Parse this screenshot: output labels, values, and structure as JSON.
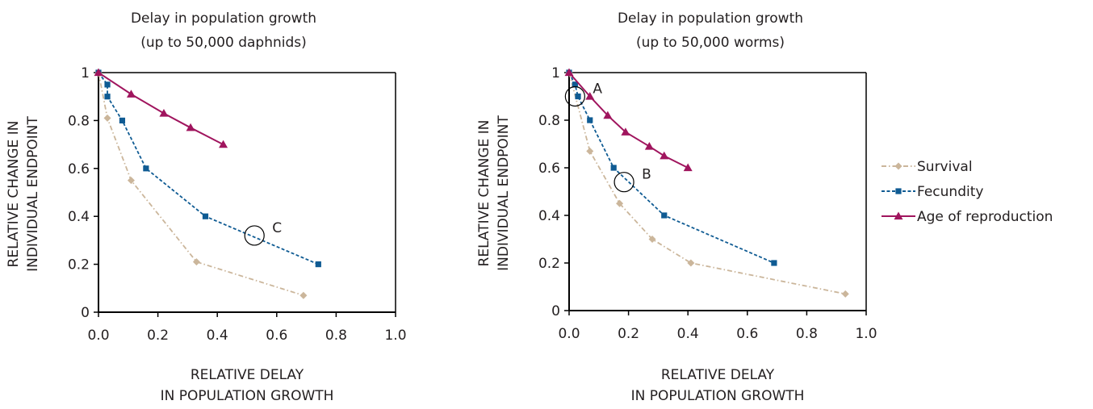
{
  "colors": {
    "survival": "#cbb69b",
    "fecundity": "#0f5b93",
    "age_of_reproduction": "#a0155e",
    "axis": "#000000",
    "text": "#231f20"
  },
  "legend": {
    "items": [
      "Survival",
      "Fecundity",
      "Age of reproduction"
    ],
    "placement": "right"
  },
  "chart_data": [
    {
      "type": "line",
      "title": "Delay in population growth",
      "subtitle": "(up to 50,000 daphnids)",
      "xlabel": [
        "RELATIVE DELAY",
        "IN POPULATION GROWTH"
      ],
      "ylabel": [
        "RELATIVE CHANGE IN",
        "INDIVIDUAL ENDPOINT"
      ],
      "xlim": [
        0,
        1.0
      ],
      "ylim": [
        0,
        1
      ],
      "xticks": [
        "0.0",
        "0.2",
        "0.4",
        "0.6",
        "0.8",
        "1.0"
      ],
      "yticks": [
        "0",
        "0.2",
        "0.4",
        "0.6",
        "0.8",
        "1"
      ],
      "grid": false,
      "series": [
        {
          "name": "Survival",
          "marker": "diamond",
          "dash": "dashdot",
          "x": [
            0,
            0.03,
            0.11,
            0.33,
            0.69
          ],
          "y": [
            1,
            0.81,
            0.55,
            0.21,
            0.07
          ]
        },
        {
          "name": "Fecundity",
          "marker": "square",
          "dash": "dashed",
          "x": [
            0,
            0.03,
            0.03,
            0.08,
            0.16,
            0.36,
            0.74
          ],
          "y": [
            1,
            0.95,
            0.9,
            0.8,
            0.6,
            0.4,
            0.2
          ]
        },
        {
          "name": "Age of reproduction",
          "marker": "triangle",
          "dash": "solid",
          "x": [
            0,
            0.11,
            0.22,
            0.31,
            0.42
          ],
          "y": [
            1,
            0.91,
            0.83,
            0.77,
            0.7
          ]
        }
      ],
      "annotations": [
        {
          "label": "C",
          "x": 0.525,
          "y": 0.32
        }
      ]
    },
    {
      "type": "line",
      "title": "Delay in population growth",
      "subtitle": "(up to 50,000 worms)",
      "xlabel": [
        "RELATIVE DELAY",
        "IN POPULATION GROWTH"
      ],
      "ylabel": [
        "RELATIVE CHANGE IN",
        "INDIVIDUAL ENDPOINT"
      ],
      "xlim": [
        0,
        1.0
      ],
      "ylim": [
        0,
        1
      ],
      "xticks": [
        "0.0",
        "0.2",
        "0.4",
        "0.6",
        "0.8",
        "1.0"
      ],
      "yticks": [
        "0",
        "0.2",
        "0.4",
        "0.6",
        "0.8",
        "1"
      ],
      "grid": false,
      "series": [
        {
          "name": "Survival",
          "marker": "diamond",
          "dash": "dashdot",
          "x": [
            0,
            0.07,
            0.17,
            0.28,
            0.41,
            0.93
          ],
          "y": [
            1,
            0.67,
            0.45,
            0.3,
            0.2,
            0.07
          ]
        },
        {
          "name": "Fecundity",
          "marker": "square",
          "dash": "dashed",
          "x": [
            0,
            0.02,
            0.03,
            0.07,
            0.15,
            0.32,
            0.69
          ],
          "y": [
            1,
            0.95,
            0.9,
            0.8,
            0.6,
            0.4,
            0.2
          ]
        },
        {
          "name": "Age of reproduction",
          "marker": "triangle",
          "dash": "solid",
          "x": [
            0,
            0.07,
            0.13,
            0.19,
            0.27,
            0.32,
            0.4
          ],
          "y": [
            1,
            0.9,
            0.82,
            0.75,
            0.69,
            0.65,
            0.6
          ]
        }
      ],
      "annotations": [
        {
          "label": "A",
          "x": 0.02,
          "y": 0.9
        },
        {
          "label": "B",
          "x": 0.185,
          "y": 0.54
        }
      ]
    }
  ]
}
